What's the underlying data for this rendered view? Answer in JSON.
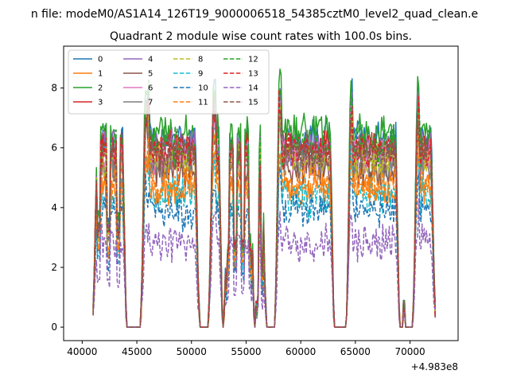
{
  "figure": {
    "suptitle": "n file: modeM0/AS1A14_126T19_9000006518_54385cztM0_level2_quad_clean.e"
  },
  "chart_data": {
    "type": "line",
    "title": "Quadrant 2 module wise count rates with 100.0s bins.",
    "xlabel": "",
    "ylabel": "",
    "x_offset_label": "+4.983e8",
    "xlim": [
      38300,
      74400
    ],
    "ylim": [
      -0.45,
      9.4
    ],
    "xticks": [
      40000,
      45000,
      50000,
      55000,
      60000,
      65000,
      70000
    ],
    "yticks": [
      0,
      2,
      4,
      6,
      8
    ],
    "bin_seconds": 100.0,
    "gaps": [
      {
        "start": 44050,
        "end": 44650
      },
      {
        "start": 44650,
        "end": 45400
      },
      {
        "start": 50700,
        "end": 51600
      },
      {
        "start": 52850,
        "end": 53000
      },
      {
        "start": 55750,
        "end": 55900
      },
      {
        "start": 56800,
        "end": 57650
      },
      {
        "start": 63050,
        "end": 64200
      },
      {
        "start": 69050,
        "end": 69400
      },
      {
        "start": 69500,
        "end": 70300
      }
    ],
    "active_intervals": [
      [
        41000,
        44050
      ],
      [
        45400,
        50700
      ],
      [
        51600,
        52850
      ],
      [
        53000,
        55750
      ],
      [
        55900,
        56800
      ],
      [
        57650,
        63050
      ],
      [
        64200,
        69050
      ],
      [
        69400,
        69500
      ],
      [
        70300,
        72300
      ]
    ],
    "series": [
      {
        "name": "0",
        "color": "#1f77b4",
        "linestyle": "solid",
        "level": 6.3
      },
      {
        "name": "1",
        "color": "#ff7f0e",
        "linestyle": "solid",
        "level": 4.6
      },
      {
        "name": "2",
        "color": "#2ca02c",
        "linestyle": "solid",
        "level": 6.5
      },
      {
        "name": "3",
        "color": "#d62728",
        "linestyle": "solid",
        "level": 5.9
      },
      {
        "name": "4",
        "color": "#9467bd",
        "linestyle": "solid",
        "level": 6.0
      },
      {
        "name": "5",
        "color": "#8c564b",
        "linestyle": "solid",
        "level": 5.3
      },
      {
        "name": "6",
        "color": "#e377c2",
        "linestyle": "solid",
        "level": 5.7
      },
      {
        "name": "7",
        "color": "#7f7f7f",
        "linestyle": "solid",
        "level": 5.5
      },
      {
        "name": "8",
        "color": "#bcbd22",
        "linestyle": "dashed",
        "level": 5.6
      },
      {
        "name": "9",
        "color": "#17becf",
        "linestyle": "dashed",
        "level": 4.4
      },
      {
        "name": "10",
        "color": "#1f77b4",
        "linestyle": "dashed",
        "level": 3.9
      },
      {
        "name": "11",
        "color": "#ff7f0e",
        "linestyle": "dashed",
        "level": 4.8
      },
      {
        "name": "12",
        "color": "#2ca02c",
        "linestyle": "dashed",
        "level": 6.1
      },
      {
        "name": "13",
        "color": "#d62728",
        "linestyle": "dashed",
        "level": 5.9
      },
      {
        "name": "14",
        "color": "#9467bd",
        "linestyle": "dashed",
        "level": 2.8
      },
      {
        "name": "15",
        "color": "#8c564b",
        "linestyle": "dashed",
        "level": 5.8
      }
    ]
  }
}
